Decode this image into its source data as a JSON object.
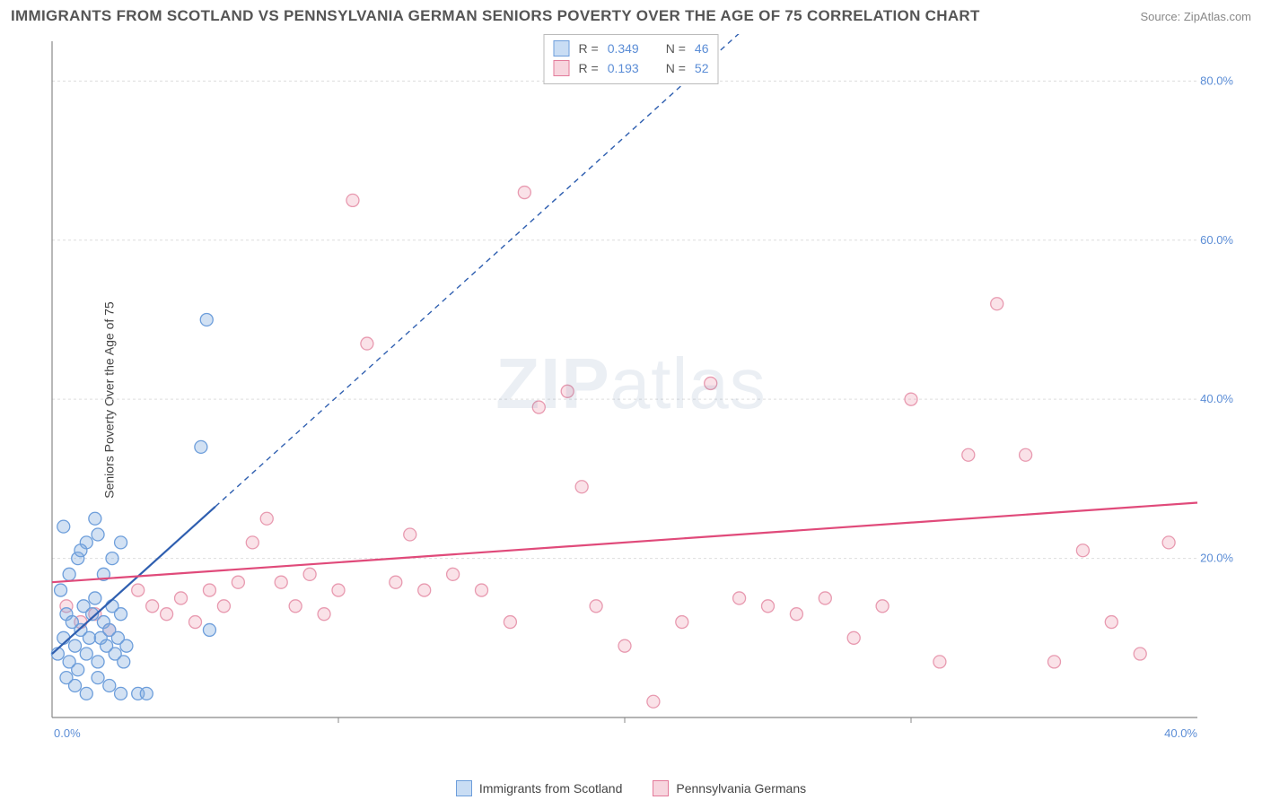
{
  "title": "IMMIGRANTS FROM SCOTLAND VS PENNSYLVANIA GERMAN SENIORS POVERTY OVER THE AGE OF 75 CORRELATION CHART",
  "source": "Source: ZipAtlas.com",
  "ylabel": "Seniors Poverty Over the Age of 75",
  "watermark": "ZIPatlas",
  "chart": {
    "type": "scatter",
    "background_color": "#ffffff",
    "grid_color": "#dddddd",
    "axis_color": "#888888",
    "xlim": [
      0,
      40
    ],
    "ylim": [
      0,
      85
    ],
    "xticks": [
      0,
      10,
      20,
      30,
      40
    ],
    "xtick_labels": [
      "0.0%",
      "",
      "",
      "",
      "40.0%"
    ],
    "xtick_minor": [
      20
    ],
    "yticks": [
      20,
      40,
      60,
      80
    ],
    "ytick_labels": [
      "20.0%",
      "40.0%",
      "60.0%",
      "80.0%"
    ],
    "label_color": "#5b8dd6",
    "label_fontsize": 13,
    "marker_radius": 7,
    "marker_stroke_width": 1.3,
    "line_width": 2.2,
    "dash_pattern": "6 5"
  },
  "stats": {
    "series1": {
      "R_label": "R =",
      "R": "0.349",
      "N_label": "N =",
      "N": "46"
    },
    "series2": {
      "R_label": "R =",
      "R": "0.193",
      "N_label": "N =",
      "N": "52"
    }
  },
  "series": [
    {
      "key": "scotland",
      "label": "Immigrants from Scotland",
      "fill": "rgba(126,170,222,0.35)",
      "stroke": "#6d9edb",
      "swatch_fill": "#c9ddf4",
      "swatch_stroke": "#6d9edb",
      "trend": {
        "color": "#2f5fb0",
        "solid_from": [
          0,
          8
        ],
        "solid_to": [
          5.7,
          26.5
        ],
        "dash_from": [
          5.7,
          26.5
        ],
        "dash_to": [
          24,
          86
        ]
      },
      "points": [
        [
          0.2,
          8
        ],
        [
          0.4,
          10
        ],
        [
          0.5,
          13
        ],
        [
          0.6,
          7
        ],
        [
          0.7,
          12
        ],
        [
          0.8,
          9
        ],
        [
          0.9,
          6
        ],
        [
          1.0,
          11
        ],
        [
          1.1,
          14
        ],
        [
          1.2,
          8
        ],
        [
          1.3,
          10
        ],
        [
          1.4,
          13
        ],
        [
          1.5,
          15
        ],
        [
          1.6,
          7
        ],
        [
          1.7,
          10
        ],
        [
          1.8,
          12
        ],
        [
          1.9,
          9
        ],
        [
          2.0,
          11
        ],
        [
          2.1,
          14
        ],
        [
          2.2,
          8
        ],
        [
          2.3,
          10
        ],
        [
          2.4,
          13
        ],
        [
          2.5,
          7
        ],
        [
          2.6,
          9
        ],
        [
          0.5,
          5
        ],
        [
          0.8,
          4
        ],
        [
          1.2,
          3
        ],
        [
          1.6,
          5
        ],
        [
          2.0,
          4
        ],
        [
          2.4,
          3
        ],
        [
          0.3,
          16
        ],
        [
          0.6,
          18
        ],
        [
          0.9,
          20
        ],
        [
          1.2,
          22
        ],
        [
          1.5,
          25
        ],
        [
          1.8,
          18
        ],
        [
          2.1,
          20
        ],
        [
          2.4,
          22
        ],
        [
          0.4,
          24
        ],
        [
          1.0,
          21
        ],
        [
          1.6,
          23
        ],
        [
          3.0,
          3
        ],
        [
          3.3,
          3
        ],
        [
          5.5,
          11
        ],
        [
          5.2,
          34
        ],
        [
          5.4,
          50
        ]
      ]
    },
    {
      "key": "penn_german",
      "label": "Pennsylvania Germans",
      "fill": "rgba(240,160,180,0.30)",
      "stroke": "#e89ab0",
      "swatch_fill": "#f7d5de",
      "swatch_stroke": "#e37a9a",
      "trend": {
        "color": "#e04a7a",
        "solid_from": [
          0,
          17
        ],
        "solid_to": [
          40,
          27
        ],
        "dash_from": null,
        "dash_to": null
      },
      "points": [
        [
          0.5,
          14
        ],
        [
          1.0,
          12
        ],
        [
          1.5,
          13
        ],
        [
          2.0,
          11
        ],
        [
          3.0,
          16
        ],
        [
          3.5,
          14
        ],
        [
          4.0,
          13
        ],
        [
          4.5,
          15
        ],
        [
          5.0,
          12
        ],
        [
          5.5,
          16
        ],
        [
          6.0,
          14
        ],
        [
          6.5,
          17
        ],
        [
          7.5,
          25
        ],
        [
          8.0,
          17
        ],
        [
          8.5,
          14
        ],
        [
          9.0,
          18
        ],
        [
          9.5,
          13
        ],
        [
          10.0,
          16
        ],
        [
          11.0,
          47
        ],
        [
          7.0,
          22
        ],
        [
          12.0,
          17
        ],
        [
          12.5,
          23
        ],
        [
          13.0,
          16
        ],
        [
          14.0,
          18
        ],
        [
          15.0,
          16
        ],
        [
          16.0,
          12
        ],
        [
          17.0,
          39
        ],
        [
          18.0,
          41
        ],
        [
          18.5,
          29
        ],
        [
          19.0,
          14
        ],
        [
          20.0,
          9
        ],
        [
          21.0,
          2
        ],
        [
          22.0,
          12
        ],
        [
          23.0,
          42
        ],
        [
          24.0,
          15
        ],
        [
          25.0,
          14
        ],
        [
          26.0,
          13
        ],
        [
          27.0,
          15
        ],
        [
          28.0,
          10
        ],
        [
          29.0,
          14
        ],
        [
          30.0,
          40
        ],
        [
          31.0,
          7
        ],
        [
          32.0,
          33
        ],
        [
          33.0,
          52
        ],
        [
          34.0,
          33
        ],
        [
          35.0,
          7
        ],
        [
          36.0,
          21
        ],
        [
          37.0,
          12
        ],
        [
          38.0,
          8
        ],
        [
          39.0,
          22
        ],
        [
          10.5,
          65
        ],
        [
          16.5,
          66
        ]
      ]
    }
  ]
}
